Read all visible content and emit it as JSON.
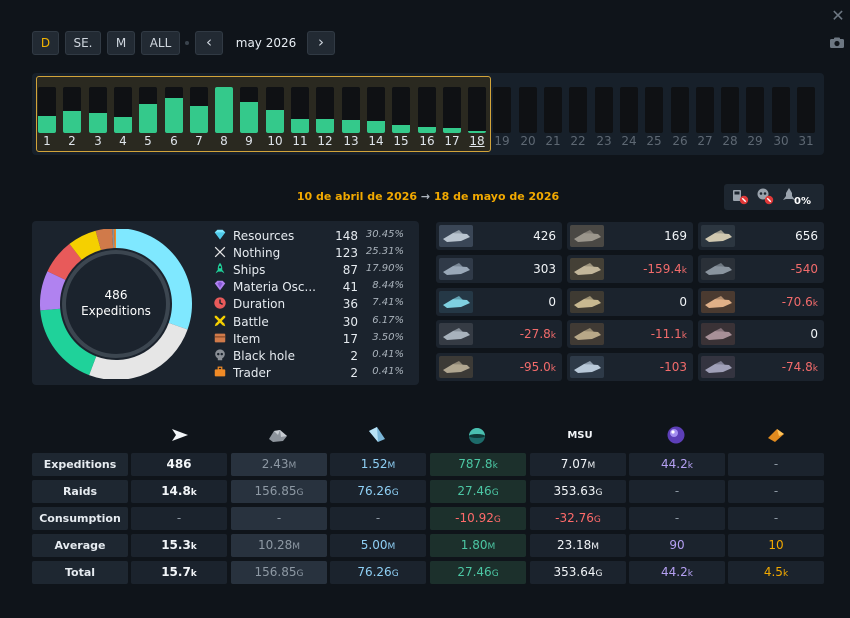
{
  "toolbar": {
    "buttons": [
      "D",
      "SE.",
      "M",
      "ALL"
    ],
    "prev": "‹",
    "next": "›",
    "month": "may 2026"
  },
  "days": {
    "labels": [
      "1",
      "2",
      "3",
      "4",
      "5",
      "6",
      "7",
      "8",
      "9",
      "10",
      "11",
      "12",
      "13",
      "14",
      "15",
      "16",
      "17",
      "18",
      "19",
      "20",
      "21",
      "22",
      "23",
      "24",
      "25",
      "26",
      "27",
      "28",
      "29",
      "30",
      "31"
    ],
    "selected_through": 18,
    "levels": [
      0.38,
      0.48,
      0.44,
      0.35,
      0.62,
      0.75,
      0.58,
      1.0,
      0.68,
      0.5,
      0.3,
      0.3,
      0.28,
      0.26,
      0.18,
      0.12,
      0.1,
      0.05
    ]
  },
  "date_range": {
    "start": "10 de abril de 2026",
    "arrow": "→",
    "end": "18 de mayo de 2026"
  },
  "loss_percent": "0%",
  "summary": {
    "total": "486",
    "label": "Expeditions",
    "colors": {
      "Resources": "#7fe8ff",
      "Nothing": "#e6e6e6",
      "Ships": "#1fd29a",
      "Materia Osc...": "#b082f0",
      "Duration": "#e85a5a",
      "Battle": "#f5d000",
      "Item": "#d07a4a",
      "Black hole": "#8a8f96",
      "Trader": "#f08a26"
    },
    "rows": [
      {
        "icon": "diamond-icon",
        "name": "Resources",
        "count": "148",
        "pct": "30.45%"
      },
      {
        "icon": "x-icon",
        "name": "Nothing",
        "count": "123",
        "pct": "25.31%"
      },
      {
        "icon": "rocket-icon",
        "name": "Ships",
        "count": "87",
        "pct": "17.90%"
      },
      {
        "icon": "purple-gem-icon",
        "name": "Materia Osc...",
        "count": "41",
        "pct": "8.44%"
      },
      {
        "icon": "clock-icon",
        "name": "Duration",
        "count": "36",
        "pct": "7.41%"
      },
      {
        "icon": "crossed-swords-icon",
        "name": "Battle",
        "count": "30",
        "pct": "6.17%"
      },
      {
        "icon": "box-icon",
        "name": "Item",
        "count": "17",
        "pct": "3.50%"
      },
      {
        "icon": "skull-icon",
        "name": "Black hole",
        "count": "2",
        "pct": "0.41%"
      },
      {
        "icon": "briefcase-icon",
        "name": "Trader",
        "count": "2",
        "pct": "0.41%"
      }
    ]
  },
  "ships": [
    {
      "icon": "ship-1-icon",
      "num": "426",
      "unit": "",
      "neg": false
    },
    {
      "icon": "ship-2-icon",
      "num": "169",
      "unit": "",
      "neg": false
    },
    {
      "icon": "ship-3-icon",
      "num": "656",
      "unit": "",
      "neg": false
    },
    {
      "icon": "ship-4-icon",
      "num": "303",
      "unit": "",
      "neg": false
    },
    {
      "icon": "ship-5-icon",
      "num": "-159.4",
      "unit": "k",
      "neg": true
    },
    {
      "icon": "ship-6-icon",
      "num": "-540",
      "unit": "",
      "neg": true
    },
    {
      "icon": "ship-7-icon",
      "num": "0",
      "unit": "",
      "neg": false
    },
    {
      "icon": "ship-8-icon",
      "num": "0",
      "unit": "",
      "neg": false
    },
    {
      "icon": "ship-9-icon",
      "num": "-70.6",
      "unit": "k",
      "neg": true
    },
    {
      "icon": "ship-10-icon",
      "num": "-27.8",
      "unit": "k",
      "neg": true
    },
    {
      "icon": "ship-11-icon",
      "num": "-11.1",
      "unit": "k",
      "neg": true
    },
    {
      "icon": "ship-12-icon",
      "num": "0",
      "unit": "",
      "neg": false
    },
    {
      "icon": "ship-13-icon",
      "num": "-95.0",
      "unit": "k",
      "neg": true
    },
    {
      "icon": "ship-14-icon",
      "num": "-103",
      "unit": "",
      "neg": true
    },
    {
      "icon": "ship-15-icon",
      "num": "-74.8",
      "unit": "k",
      "neg": true
    }
  ],
  "table": {
    "columns": [
      "send-arrow-icon",
      "metal-icon",
      "crystal-icon",
      "deuterium-icon",
      "MSU",
      "dark-matter-icon",
      "food-icon"
    ],
    "rows": [
      {
        "label": "Expeditions",
        "cells": [
          [
            "486",
            ""
          ],
          [
            "2.43",
            "M"
          ],
          [
            "1.52",
            "M"
          ],
          [
            "787.8",
            "k"
          ],
          [
            "7.07",
            "M"
          ],
          [
            "44.2",
            "k"
          ],
          [
            "-",
            ""
          ]
        ]
      },
      {
        "label": "Raids",
        "cells": [
          [
            "14.8",
            "k"
          ],
          [
            "156.85",
            "G"
          ],
          [
            "76.26",
            "G"
          ],
          [
            "27.46",
            "G"
          ],
          [
            "353.63",
            "G"
          ],
          [
            "-",
            ""
          ],
          [
            "-",
            ""
          ]
        ]
      },
      {
        "label": "Consumption",
        "cells": [
          [
            "-",
            ""
          ],
          [
            "-",
            ""
          ],
          [
            "-",
            ""
          ],
          [
            "-10.92",
            "G"
          ],
          [
            "-32.76",
            "G"
          ],
          [
            "-",
            ""
          ],
          [
            "-",
            ""
          ]
        ]
      },
      {
        "label": "Average",
        "cells": [
          [
            "15.3",
            "k"
          ],
          [
            "10.28",
            "M"
          ],
          [
            "5.00",
            "M"
          ],
          [
            "1.80",
            "M"
          ],
          [
            "23.18",
            "M"
          ],
          [
            "90",
            ""
          ],
          [
            "10",
            ""
          ]
        ]
      },
      {
        "label": "Total",
        "cells": [
          [
            "15.7",
            "k"
          ],
          [
            "156.85",
            "G"
          ],
          [
            "76.26",
            "G"
          ],
          [
            "27.46",
            "G"
          ],
          [
            "353.64",
            "G"
          ],
          [
            "44.2",
            "k"
          ],
          [
            "4.5",
            "k"
          ]
        ]
      }
    ]
  }
}
